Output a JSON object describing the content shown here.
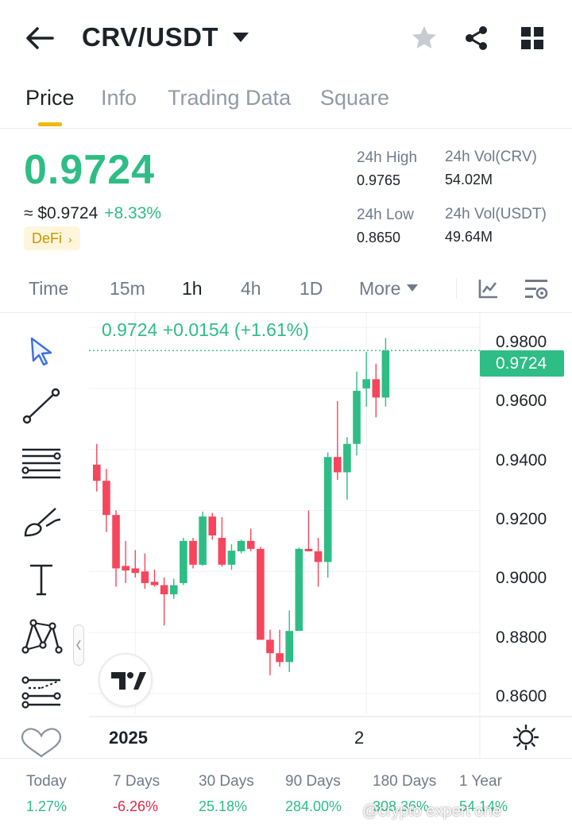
{
  "header": {
    "title": "CRV/USDT"
  },
  "tabs": [
    {
      "label": "Price",
      "active": true
    },
    {
      "label": "Info",
      "active": false
    },
    {
      "label": "Trading Data",
      "active": false
    },
    {
      "label": "Square",
      "active": false
    }
  ],
  "price": {
    "last": "0.9724",
    "approx": "≈ $0.9724",
    "change": "+8.33%",
    "tag": "DeFi",
    "stats": {
      "high_label": "24h High",
      "high_value": "0.9765",
      "low_label": "24h Low",
      "low_value": "0.8650",
      "vol_crv_label": "24h Vol(CRV)",
      "vol_crv_value": "54.02M",
      "vol_usdt_label": "24h Vol(USDT)",
      "vol_usdt_value": "49.64M"
    }
  },
  "intervals": [
    {
      "label": "Time",
      "active": false
    },
    {
      "label": "15m",
      "active": false
    },
    {
      "label": "1h",
      "active": true
    },
    {
      "label": "4h",
      "active": false
    },
    {
      "label": "1D",
      "active": false
    },
    {
      "label": "More",
      "active": false
    }
  ],
  "chart": {
    "readout": "0.9724 +0.0154 (+1.61%)",
    "current_price_label": "0.9724",
    "y_ticks": [
      "0.9800",
      "0.9600",
      "0.9400",
      "0.9200",
      "0.9000",
      "0.8800",
      "0.8600"
    ],
    "x_ticks": [
      "2025",
      "2"
    ],
    "colors": {
      "up": "#2ebd85",
      "down": "#f6465d"
    }
  },
  "chart_data": {
    "type": "candlestick",
    "x": [
      1,
      2,
      3,
      4,
      5,
      6,
      7,
      8,
      9,
      10,
      11,
      12,
      13,
      14,
      15,
      16,
      17,
      18,
      19,
      20,
      21,
      22,
      23,
      24,
      25,
      26,
      27,
      28,
      29,
      30,
      31
    ],
    "x_ticks": [
      "2025",
      "2"
    ],
    "ylim": [
      0.8532,
      0.9847
    ],
    "current_price": 0.9724,
    "candles": [
      {
        "o": 0.935,
        "h": 0.9418,
        "l": 0.9262,
        "c": 0.9297
      },
      {
        "o": 0.9297,
        "h": 0.9336,
        "l": 0.9129,
        "c": 0.9185
      },
      {
        "o": 0.9185,
        "h": 0.92,
        "l": 0.895,
        "c": 0.901
      },
      {
        "o": 0.9018,
        "h": 0.91,
        "l": 0.8962,
        "c": 0.9003
      },
      {
        "o": 0.901,
        "h": 0.907,
        "l": 0.898,
        "c": 0.8995
      },
      {
        "o": 0.9,
        "h": 0.9059,
        "l": 0.8943,
        "c": 0.8962
      },
      {
        "o": 0.8966,
        "h": 0.9006,
        "l": 0.895,
        "c": 0.8955
      },
      {
        "o": 0.8955,
        "h": 0.898,
        "l": 0.8823,
        "c": 0.8925
      },
      {
        "o": 0.8925,
        "h": 0.8976,
        "l": 0.891,
        "c": 0.8955
      },
      {
        "o": 0.8962,
        "h": 0.911,
        "l": 0.8955,
        "c": 0.91
      },
      {
        "o": 0.91,
        "h": 0.911,
        "l": 0.901,
        "c": 0.9022
      },
      {
        "o": 0.9022,
        "h": 0.9196,
        "l": 0.9018,
        "c": 0.918
      },
      {
        "o": 0.918,
        "h": 0.9192,
        "l": 0.9104,
        "c": 0.9118
      },
      {
        "o": 0.911,
        "h": 0.9178,
        "l": 0.9016,
        "c": 0.9022
      },
      {
        "o": 0.9022,
        "h": 0.9089,
        "l": 0.9005,
        "c": 0.9068
      },
      {
        "o": 0.9066,
        "h": 0.9104,
        "l": 0.9059,
        "c": 0.91
      },
      {
        "o": 0.91,
        "h": 0.914,
        "l": 0.9066,
        "c": 0.9074
      },
      {
        "o": 0.9074,
        "h": 0.908,
        "l": 0.8776,
        "c": 0.8776
      },
      {
        "o": 0.8776,
        "h": 0.8809,
        "l": 0.866,
        "c": 0.8732
      },
      {
        "o": 0.8732,
        "h": 0.8809,
        "l": 0.8688,
        "c": 0.8703
      },
      {
        "o": 0.8703,
        "h": 0.8872,
        "l": 0.867,
        "c": 0.8805
      },
      {
        "o": 0.8805,
        "h": 0.9078,
        "l": 0.8805,
        "c": 0.9074
      },
      {
        "o": 0.9074,
        "h": 0.92,
        "l": 0.9066,
        "c": 0.9066
      },
      {
        "o": 0.9066,
        "h": 0.911,
        "l": 0.895,
        "c": 0.9031
      },
      {
        "o": 0.9031,
        "h": 0.939,
        "l": 0.898,
        "c": 0.9375
      },
      {
        "o": 0.9375,
        "h": 0.9558,
        "l": 0.93,
        "c": 0.9325
      },
      {
        "o": 0.9325,
        "h": 0.944,
        "l": 0.9235,
        "c": 0.9418
      },
      {
        "o": 0.9418,
        "h": 0.9655,
        "l": 0.938,
        "c": 0.9592
      },
      {
        "o": 0.96,
        "h": 0.972,
        "l": 0.954,
        "c": 0.963
      },
      {
        "o": 0.963,
        "h": 0.9681,
        "l": 0.9505,
        "c": 0.957
      },
      {
        "o": 0.957,
        "h": 0.9765,
        "l": 0.954,
        "c": 0.9724
      }
    ]
  },
  "performance": [
    {
      "label": "Today",
      "value": "1.27%",
      "trend": "up"
    },
    {
      "label": "7 Days",
      "value": "-6.26%",
      "trend": "down"
    },
    {
      "label": "30 Days",
      "value": "25.18%",
      "trend": "up"
    },
    {
      "label": "90 Days",
      "value": "284.00%",
      "trend": "up"
    },
    {
      "label": "180 Days",
      "value": "308.36%",
      "trend": "up"
    },
    {
      "label": "1 Year",
      "value": "54.14%",
      "trend": "up"
    }
  ],
  "watermark": "@crypto expert one"
}
